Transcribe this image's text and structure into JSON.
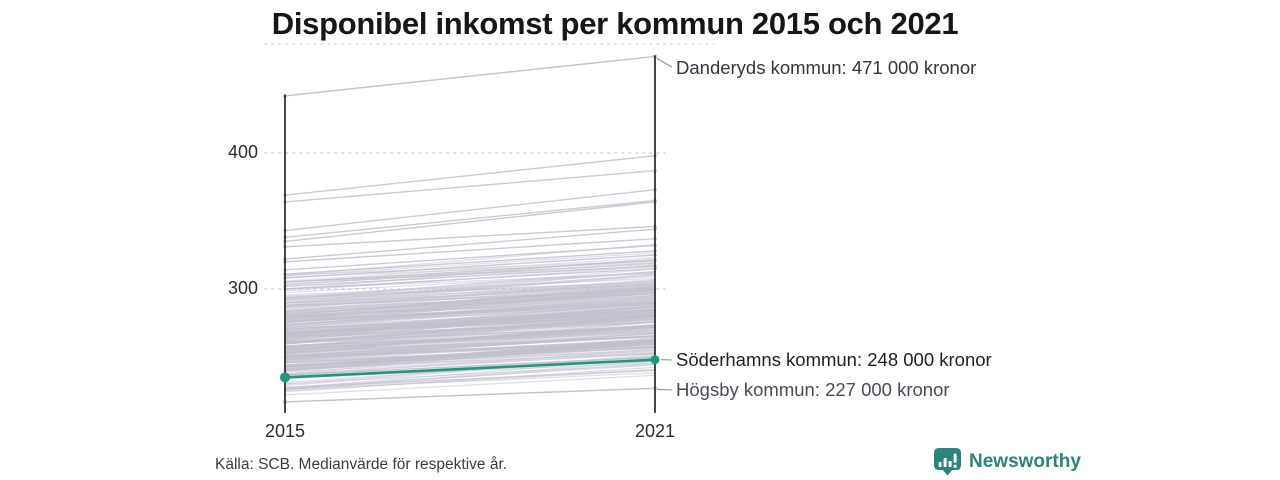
{
  "chart_data": {
    "type": "slope",
    "title": "Disponibel inkomst per kommun 2015 och 2021",
    "y_unit": "tusen kronor",
    "x_categories": [
      "2015",
      "2021"
    ],
    "y_tick_labels": [
      "400",
      "300"
    ],
    "y_tick_values": [
      400,
      300
    ],
    "grid": "dotted horizontal gridlines at 300 and 400, dotted top boundary",
    "highlight": {
      "name": "Söderhamns kommun",
      "label": "Söderhamns kommun: 248 000 kronor",
      "value_2015": 235,
      "value_2021": 248,
      "color": "#1e977f"
    },
    "annotations": {
      "danderyd": {
        "name": "Danderyds kommun",
        "label": "Danderyds kommun: 471 000 kronor",
        "value_2015": 442,
        "value_2021": 471
      },
      "hogsby": {
        "name": "Högsby kommun",
        "label": "Högsby kommun: 227 000 kronor",
        "value_2015": 217,
        "value_2021": 227
      }
    },
    "outlier_lines": [
      [
        369,
        398
      ],
      [
        364,
        387
      ],
      [
        343,
        373
      ],
      [
        338,
        365
      ],
      [
        335,
        364
      ],
      [
        331,
        346
      ],
      [
        322,
        344
      ],
      [
        320,
        337
      ],
      [
        314,
        332
      ],
      [
        311,
        328
      ],
      [
        308,
        325
      ],
      [
        305,
        321
      ],
      [
        302,
        317
      ],
      [
        300,
        315
      ]
    ],
    "background_band": {
      "count": 255,
      "v2015_min": 218,
      "v2015_max": 313,
      "gain_min": 10,
      "gain_max": 24,
      "v2021_max": 333,
      "color": "#c3c0ce",
      "opacity": 0.5,
      "seed": 7
    }
  },
  "footer": {
    "source": "Källa: SCB. Medianvärde för respektive år.",
    "brand": "Newsworthy"
  },
  "colors": {
    "highlight_teal": "#1e977f",
    "brand_teal": "#2b837c",
    "line_gray": "#c3c0ce",
    "axis_black": "#1a1a1a",
    "grid_gray": "#d2cfda",
    "connector_gray": "#8d8d97"
  }
}
